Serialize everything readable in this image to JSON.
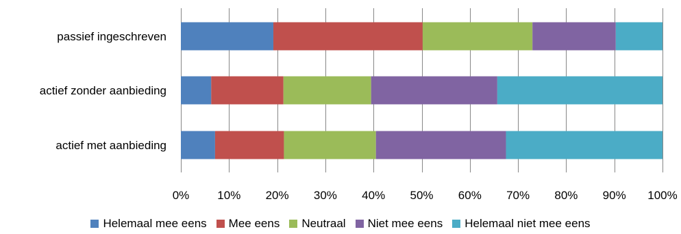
{
  "chart_data": {
    "type": "bar",
    "orientation": "horizontal",
    "stacked": true,
    "percent_scale": true,
    "categories": [
      "passief ingeschreven",
      "actief zonder aanbieding",
      "actief met aanbieding"
    ],
    "series": [
      {
        "name": "Helemaal mee eens",
        "color": "#4F81BD",
        "values": [
          19.2,
          6.3,
          7.1
        ]
      },
      {
        "name": "Mee eens",
        "color": "#C0504D",
        "values": [
          31.0,
          15.0,
          14.3
        ]
      },
      {
        "name": "Neutraal",
        "color": "#9BBB59",
        "values": [
          22.8,
          18.2,
          19.1
        ]
      },
      {
        "name": "Niet mee eens",
        "color": "#8064A2",
        "values": [
          17.3,
          26.2,
          27.0
        ]
      },
      {
        "name": "Helemaal niet mee eens",
        "color": "#4BACC6",
        "values": [
          9.7,
          34.3,
          32.5
        ]
      }
    ],
    "xlim": [
      0,
      100
    ],
    "xticks": [
      "0%",
      "10%",
      "20%",
      "30%",
      "40%",
      "50%",
      "60%",
      "70%",
      "80%",
      "90%",
      "100%"
    ],
    "grid": true,
    "legend_position": "bottom"
  }
}
